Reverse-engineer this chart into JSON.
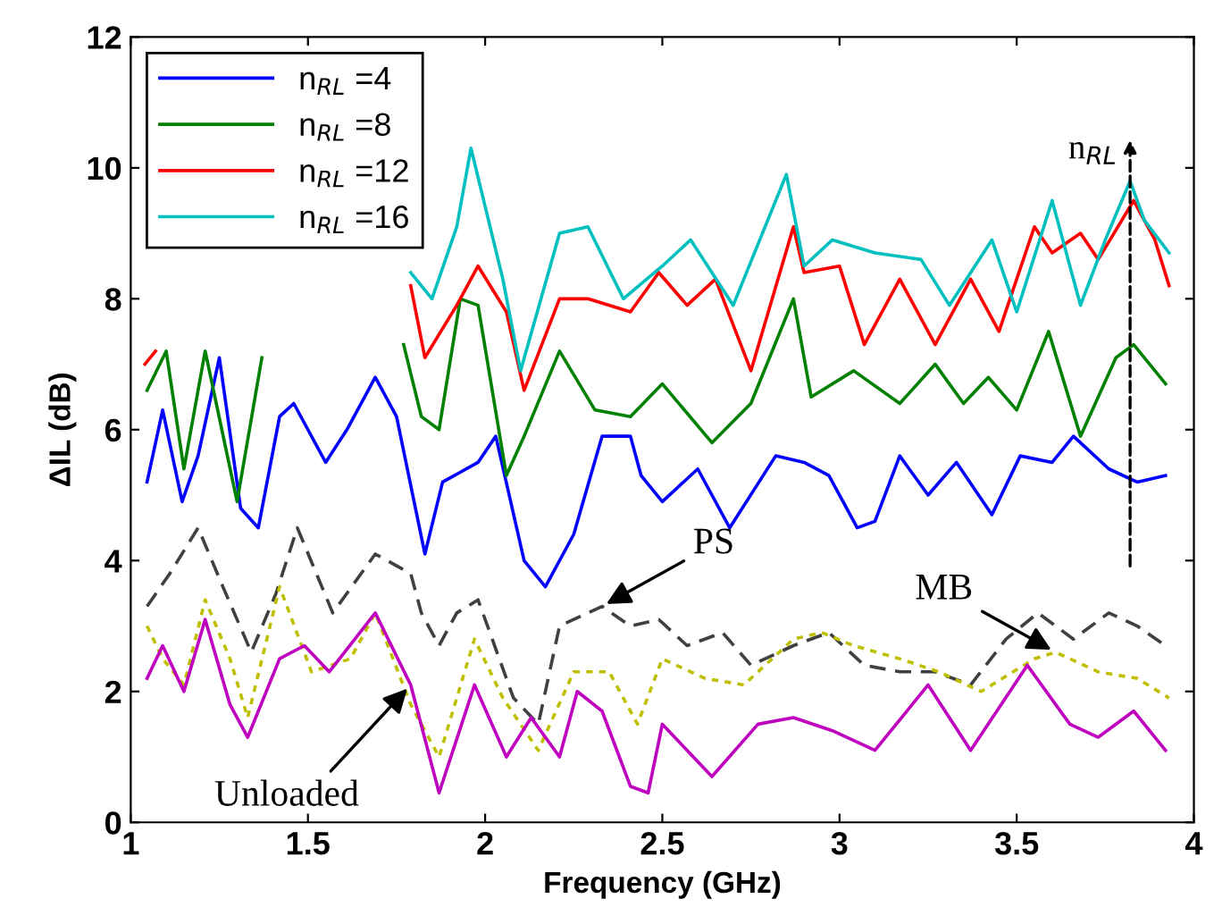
{
  "chart_data": {
    "type": "line",
    "xlabel": "Frequency (GHz)",
    "ylabel": "ΔIL (dB)",
    "xlim": [
      1,
      4
    ],
    "ylim": [
      0,
      12
    ],
    "xticks": [
      1,
      1.5,
      2,
      2.5,
      3,
      3.5,
      4
    ],
    "yticks": [
      0,
      2,
      4,
      6,
      8,
      10,
      12
    ],
    "grid": false,
    "legend": "top left",
    "series": [
      {
        "name": "n$_{RL}$ =4",
        "color": "#0000ff",
        "line_style": "solid",
        "x": [
          1.046,
          1.09,
          1.145,
          1.19,
          1.25,
          1.31,
          1.36,
          1.42,
          1.46,
          1.55,
          1.61,
          1.69,
          1.75,
          1.83,
          1.88,
          1.98,
          2.03,
          2.11,
          2.17,
          2.25,
          2.33,
          2.41,
          2.44,
          2.5,
          2.6,
          2.69,
          2.82,
          2.9,
          2.97,
          3.05,
          3.1,
          3.17,
          3.25,
          3.33,
          3.43,
          3.51,
          3.6,
          3.66,
          3.76,
          3.84,
          3.92
        ],
        "values": [
          5.2,
          6.3,
          4.9,
          5.6,
          7.1,
          4.8,
          4.5,
          6.2,
          6.4,
          5.5,
          6.0,
          6.8,
          6.2,
          4.1,
          5.2,
          5.5,
          5.9,
          4.0,
          3.6,
          4.4,
          5.9,
          5.9,
          5.3,
          4.9,
          5.4,
          4.5,
          5.6,
          5.5,
          5.3,
          4.5,
          4.6,
          5.6,
          5.0,
          5.5,
          4.7,
          5.6,
          5.5,
          5.9,
          5.4,
          5.2,
          5.3
        ]
      },
      {
        "name": "n$_{RL}$ =8",
        "color": "#008000",
        "line_style": "solid",
        "x": [
          1.046,
          1.1,
          1.15,
          1.21,
          1.3,
          1.37,
          1.42,
          1.77,
          1.82,
          1.87,
          1.93,
          1.98,
          2.06,
          2.11,
          2.21,
          2.31,
          2.41,
          2.5,
          2.64,
          2.75,
          2.87,
          2.92,
          3.04,
          3.17,
          3.27,
          3.35,
          3.42,
          3.5,
          3.59,
          3.68,
          3.78,
          3.83,
          3.92
        ],
        "values": [
          6.6,
          7.2,
          5.4,
          7.2,
          4.9,
          7.1,
          null,
          7.3,
          6.2,
          6.0,
          8.0,
          7.9,
          5.3,
          5.9,
          7.2,
          6.3,
          6.2,
          6.7,
          5.8,
          6.4,
          8.0,
          6.5,
          6.9,
          6.4,
          7.0,
          6.4,
          6.8,
          6.3,
          7.5,
          5.9,
          7.1,
          7.3,
          6.7
        ]
      },
      {
        "name": "n$_{RL}$ =12",
        "color": "#ff0000",
        "line_style": "solid",
        "x": [
          1.04,
          1.07,
          1.5,
          1.79,
          1.83,
          1.92,
          1.98,
          2.06,
          2.11,
          2.21,
          2.29,
          2.41,
          2.49,
          2.57,
          2.65,
          2.75,
          2.87,
          2.9,
          3.0,
          3.07,
          3.17,
          3.27,
          3.37,
          3.45,
          3.55,
          3.6,
          3.68,
          3.73,
          3.83,
          3.89,
          3.93
        ],
        "values": [
          7.0,
          7.2,
          null,
          8.2,
          7.1,
          7.9,
          8.5,
          7.8,
          6.6,
          8.0,
          8.0,
          7.8,
          8.4,
          7.9,
          8.3,
          6.9,
          9.1,
          8.4,
          8.5,
          7.3,
          8.3,
          7.3,
          8.3,
          7.5,
          9.1,
          8.7,
          9.0,
          8.6,
          9.5,
          8.9,
          8.2
        ]
      },
      {
        "name": "n$_{RL}$ =16",
        "color": "#00bfbf",
        "line_style": "solid",
        "x": [
          1.79,
          1.85,
          1.92,
          1.96,
          2.05,
          2.1,
          2.21,
          2.29,
          2.39,
          2.5,
          2.58,
          2.7,
          2.85,
          2.9,
          2.98,
          3.1,
          3.23,
          3.31,
          3.43,
          3.5,
          3.6,
          3.68,
          3.75,
          3.82,
          3.86,
          3.93
        ],
        "values": [
          8.4,
          8.0,
          9.1,
          10.3,
          8.3,
          6.9,
          9.0,
          9.1,
          8.0,
          8.5,
          8.9,
          7.9,
          9.9,
          8.5,
          8.9,
          8.7,
          8.6,
          7.9,
          8.9,
          7.8,
          9.5,
          7.9,
          8.9,
          9.8,
          9.2,
          8.7
        ]
      },
      {
        "color": "#404040",
        "line_style": "dashed",
        "x": [
          1.046,
          1.11,
          1.19,
          1.26,
          1.34,
          1.41,
          1.47,
          1.57,
          1.69,
          1.79,
          1.82,
          1.87,
          1.92,
          1.98,
          2.08,
          2.15,
          2.21,
          2.33,
          2.41,
          2.49,
          2.57,
          2.67,
          2.75,
          2.87,
          2.97,
          3.07,
          3.17,
          3.27,
          3.37,
          3.47,
          3.56,
          3.66,
          3.76,
          3.84,
          3.92
        ],
        "values": [
          3.3,
          3.8,
          4.5,
          3.6,
          2.6,
          3.5,
          4.5,
          3.2,
          4.1,
          3.8,
          3.2,
          2.7,
          3.2,
          3.4,
          1.9,
          1.5,
          3.0,
          3.3,
          3.0,
          3.1,
          2.7,
          2.9,
          2.4,
          2.7,
          2.9,
          2.4,
          2.3,
          2.3,
          2.1,
          2.8,
          3.2,
          2.8,
          3.2,
          3.0,
          2.7
        ]
      },
      {
        "color": "#bfbf00",
        "line_style": "dotted",
        "x": [
          1.046,
          1.09,
          1.15,
          1.21,
          1.28,
          1.33,
          1.42,
          1.51,
          1.62,
          1.69,
          1.79,
          1.87,
          1.97,
          2.05,
          2.15,
          2.25,
          2.35,
          2.43,
          2.5,
          2.62,
          2.73,
          2.87,
          2.95,
          3.04,
          3.17,
          3.28,
          3.4,
          3.55,
          3.61,
          3.73,
          3.84,
          3.93
        ],
        "values": [
          3.0,
          2.5,
          2.1,
          3.4,
          2.5,
          1.6,
          3.6,
          2.3,
          2.5,
          3.2,
          1.8,
          1.0,
          2.8,
          1.9,
          1.1,
          2.3,
          2.3,
          1.5,
          2.5,
          2.2,
          2.1,
          2.8,
          2.9,
          2.7,
          2.5,
          2.3,
          2.0,
          2.5,
          2.6,
          2.3,
          2.2,
          1.9
        ]
      },
      {
        "color": "#bf00bf",
        "line_style": "solid",
        "x": [
          1.046,
          1.09,
          1.15,
          1.21,
          1.28,
          1.33,
          1.42,
          1.49,
          1.56,
          1.69,
          1.79,
          1.87,
          1.97,
          2.06,
          2.13,
          2.21,
          2.26,
          2.33,
          2.41,
          2.46,
          2.5,
          2.64,
          2.77,
          2.87,
          2.98,
          3.1,
          3.25,
          3.37,
          3.53,
          3.65,
          3.73,
          3.83,
          3.92
        ],
        "values": [
          2.2,
          2.7,
          2.0,
          3.1,
          1.8,
          1.3,
          2.5,
          2.7,
          2.3,
          3.2,
          2.1,
          0.45,
          2.1,
          1.0,
          1.6,
          1.0,
          2.0,
          1.7,
          0.55,
          0.45,
          1.5,
          0.7,
          1.5,
          1.6,
          1.4,
          1.1,
          2.1,
          1.1,
          2.4,
          1.5,
          1.3,
          1.7,
          1.1
        ]
      }
    ],
    "annotations": [
      {
        "text": "Unloaded",
        "x": 1.79,
        "y": 2.1
      },
      {
        "text": "PS",
        "x": 2.33,
        "y": 3.3
      },
      {
        "text": "MB",
        "x": 3.61,
        "y": 2.6
      },
      "n$_{RL}$"
    ]
  }
}
